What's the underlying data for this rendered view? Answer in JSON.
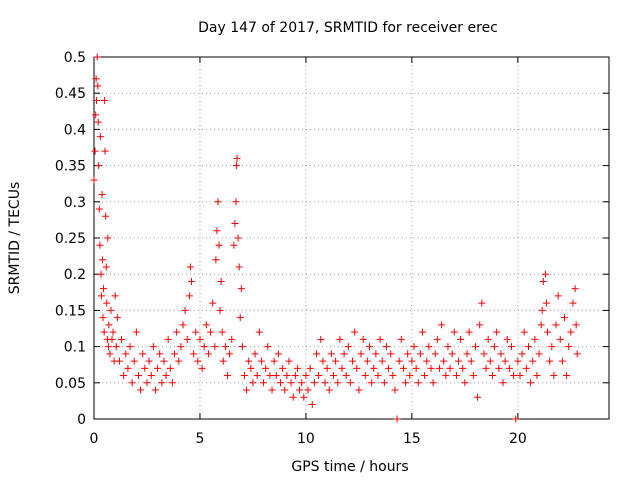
{
  "chart_data": {
    "type": "scatter",
    "title": "Day 147 of 2017, SRMTID for receiver erec",
    "xlabel": "GPS time / hours",
    "ylabel": "SRMTID / TECUs",
    "xlim": [
      0,
      24.3
    ],
    "ylim": [
      0,
      0.5
    ],
    "x_ticks": [
      0,
      5,
      10,
      15,
      20
    ],
    "y_ticks": [
      0,
      0.05,
      0.1,
      0.15,
      0.2,
      0.25,
      0.3,
      0.35,
      0.4,
      0.45,
      0.5
    ],
    "grid": true,
    "marker": "plus",
    "marker_color": "#ff0000",
    "series": [
      {
        "name": "SRMTID",
        "points": [
          [
            0.0,
            0.33
          ],
          [
            0.05,
            0.37
          ],
          [
            0.08,
            0.42
          ],
          [
            0.1,
            0.47
          ],
          [
            0.12,
            0.44
          ],
          [
            0.15,
            0.5
          ],
          [
            0.18,
            0.46
          ],
          [
            0.2,
            0.41
          ],
          [
            0.22,
            0.35
          ],
          [
            0.25,
            0.29
          ],
          [
            0.28,
            0.24
          ],
          [
            0.3,
            0.39
          ],
          [
            0.33,
            0.2
          ],
          [
            0.35,
            0.17
          ],
          [
            0.38,
            0.31
          ],
          [
            0.4,
            0.22
          ],
          [
            0.42,
            0.14
          ],
          [
            0.45,
            0.18
          ],
          [
            0.48,
            0.12
          ],
          [
            0.5,
            0.44
          ],
          [
            0.52,
            0.37
          ],
          [
            0.55,
            0.28
          ],
          [
            0.58,
            0.21
          ],
          [
            0.6,
            0.16
          ],
          [
            0.63,
            0.11
          ],
          [
            0.65,
            0.25
          ],
          [
            0.68,
            0.1
          ],
          [
            0.7,
            0.13
          ],
          [
            0.75,
            0.09
          ],
          [
            0.8,
            0.15
          ],
          [
            0.85,
            0.11
          ],
          [
            0.9,
            0.12
          ],
          [
            0.95,
            0.08
          ],
          [
            1.0,
            0.17
          ],
          [
            1.05,
            0.1
          ],
          [
            1.1,
            0.14
          ],
          [
            1.2,
            0.08
          ],
          [
            1.3,
            0.11
          ],
          [
            1.4,
            0.06
          ],
          [
            1.5,
            0.09
          ],
          [
            1.6,
            0.07
          ],
          [
            1.7,
            0.1
          ],
          [
            1.8,
            0.05
          ],
          [
            1.9,
            0.08
          ],
          [
            2.0,
            0.12
          ],
          [
            2.1,
            0.06
          ],
          [
            2.2,
            0.04
          ],
          [
            2.3,
            0.09
          ],
          [
            2.4,
            0.07
          ],
          [
            2.5,
            0.05
          ],
          [
            2.6,
            0.08
          ],
          [
            2.7,
            0.06
          ],
          [
            2.8,
            0.1
          ],
          [
            2.9,
            0.04
          ],
          [
            3.0,
            0.07
          ],
          [
            3.1,
            0.09
          ],
          [
            3.2,
            0.05
          ],
          [
            3.3,
            0.08
          ],
          [
            3.4,
            0.06
          ],
          [
            3.5,
            0.11
          ],
          [
            3.6,
            0.07
          ],
          [
            3.7,
            0.05
          ],
          [
            3.8,
            0.09
          ],
          [
            3.9,
            0.12
          ],
          [
            4.0,
            0.08
          ],
          [
            4.1,
            0.1
          ],
          [
            4.2,
            0.13
          ],
          [
            4.3,
            0.15
          ],
          [
            4.4,
            0.11
          ],
          [
            4.5,
            0.17
          ],
          [
            4.55,
            0.21
          ],
          [
            4.6,
            0.19
          ],
          [
            4.7,
            0.09
          ],
          [
            4.8,
            0.12
          ],
          [
            4.9,
            0.08
          ],
          [
            5.0,
            0.11
          ],
          [
            5.1,
            0.07
          ],
          [
            5.2,
            0.1
          ],
          [
            5.3,
            0.13
          ],
          [
            5.4,
            0.09
          ],
          [
            5.5,
            0.12
          ],
          [
            5.6,
            0.16
          ],
          [
            5.7,
            0.1
          ],
          [
            5.75,
            0.22
          ],
          [
            5.8,
            0.26
          ],
          [
            5.85,
            0.3
          ],
          [
            5.9,
            0.24
          ],
          [
            5.95,
            0.15
          ],
          [
            6.0,
            0.19
          ],
          [
            6.05,
            0.12
          ],
          [
            6.1,
            0.08
          ],
          [
            6.2,
            0.1
          ],
          [
            6.3,
            0.06
          ],
          [
            6.4,
            0.09
          ],
          [
            6.5,
            0.11
          ],
          [
            6.6,
            0.24
          ],
          [
            6.65,
            0.27
          ],
          [
            6.7,
            0.3
          ],
          [
            6.72,
            0.35
          ],
          [
            6.75,
            0.36
          ],
          [
            6.8,
            0.25
          ],
          [
            6.85,
            0.21
          ],
          [
            6.9,
            0.14
          ],
          [
            6.95,
            0.18
          ],
          [
            7.0,
            0.1
          ],
          [
            7.1,
            0.06
          ],
          [
            7.2,
            0.04
          ],
          [
            7.3,
            0.08
          ],
          [
            7.4,
            0.07
          ],
          [
            7.5,
            0.05
          ],
          [
            7.6,
            0.09
          ],
          [
            7.7,
            0.06
          ],
          [
            7.8,
            0.12
          ],
          [
            7.9,
            0.08
          ],
          [
            8.0,
            0.05
          ],
          [
            8.1,
            0.07
          ],
          [
            8.2,
            0.1
          ],
          [
            8.3,
            0.06
          ],
          [
            8.4,
            0.04
          ],
          [
            8.5,
            0.08
          ],
          [
            8.6,
            0.06
          ],
          [
            8.7,
            0.09
          ],
          [
            8.8,
            0.05
          ],
          [
            8.9,
            0.07
          ],
          [
            9.0,
            0.04
          ],
          [
            9.1,
            0.06
          ],
          [
            9.2,
            0.08
          ],
          [
            9.3,
            0.05
          ],
          [
            9.4,
            0.03
          ],
          [
            9.5,
            0.06
          ],
          [
            9.6,
            0.07
          ],
          [
            9.7,
            0.04
          ],
          [
            9.8,
            0.05
          ],
          [
            9.9,
            0.03
          ],
          [
            10.0,
            0.06
          ],
          [
            10.1,
            0.04
          ],
          [
            10.2,
            0.07
          ],
          [
            10.3,
            0.02
          ],
          [
            10.4,
            0.05
          ],
          [
            10.5,
            0.09
          ],
          [
            10.6,
            0.06
          ],
          [
            10.7,
            0.11
          ],
          [
            10.8,
            0.08
          ],
          [
            10.9,
            0.05
          ],
          [
            11.0,
            0.07
          ],
          [
            11.1,
            0.04
          ],
          [
            11.2,
            0.09
          ],
          [
            11.3,
            0.06
          ],
          [
            11.4,
            0.08
          ],
          [
            11.5,
            0.05
          ],
          [
            11.6,
            0.11
          ],
          [
            11.7,
            0.07
          ],
          [
            11.8,
            0.09
          ],
          [
            11.9,
            0.06
          ],
          [
            12.0,
            0.1
          ],
          [
            12.1,
            0.05
          ],
          [
            12.2,
            0.08
          ],
          [
            12.3,
            0.12
          ],
          [
            12.4,
            0.07
          ],
          [
            12.5,
            0.04
          ],
          [
            12.6,
            0.09
          ],
          [
            12.7,
            0.11
          ],
          [
            12.8,
            0.06
          ],
          [
            12.9,
            0.08
          ],
          [
            13.0,
            0.1
          ],
          [
            13.1,
            0.05
          ],
          [
            13.2,
            0.07
          ],
          [
            13.3,
            0.09
          ],
          [
            13.4,
            0.06
          ],
          [
            13.5,
            0.11
          ],
          [
            13.6,
            0.08
          ],
          [
            13.7,
            0.05
          ],
          [
            13.8,
            0.1
          ],
          [
            13.9,
            0.07
          ],
          [
            14.0,
            0.09
          ],
          [
            14.1,
            0.06
          ],
          [
            14.2,
            0.04
          ],
          [
            14.3,
            0.0
          ],
          [
            14.4,
            0.08
          ],
          [
            14.5,
            0.11
          ],
          [
            14.6,
            0.07
          ],
          [
            14.7,
            0.05
          ],
          [
            14.8,
            0.09
          ],
          [
            14.9,
            0.06
          ],
          [
            15.0,
            0.08
          ],
          [
            15.1,
            0.1
          ],
          [
            15.2,
            0.07
          ],
          [
            15.3,
            0.05
          ],
          [
            15.4,
            0.09
          ],
          [
            15.5,
            0.12
          ],
          [
            15.6,
            0.06
          ],
          [
            15.7,
            0.08
          ],
          [
            15.8,
            0.1
          ],
          [
            15.9,
            0.07
          ],
          [
            16.0,
            0.05
          ],
          [
            16.1,
            0.09
          ],
          [
            16.2,
            0.11
          ],
          [
            16.3,
            0.07
          ],
          [
            16.4,
            0.13
          ],
          [
            16.5,
            0.08
          ],
          [
            16.6,
            0.06
          ],
          [
            16.7,
            0.1
          ],
          [
            16.8,
            0.07
          ],
          [
            16.9,
            0.09
          ],
          [
            17.0,
            0.12
          ],
          [
            17.1,
            0.06
          ],
          [
            17.2,
            0.08
          ],
          [
            17.3,
            0.11
          ],
          [
            17.4,
            0.07
          ],
          [
            17.5,
            0.05
          ],
          [
            17.6,
            0.09
          ],
          [
            17.7,
            0.12
          ],
          [
            17.8,
            0.08
          ],
          [
            17.9,
            0.06
          ],
          [
            18.0,
            0.1
          ],
          [
            18.1,
            0.03
          ],
          [
            18.2,
            0.13
          ],
          [
            18.3,
            0.16
          ],
          [
            18.4,
            0.09
          ],
          [
            18.5,
            0.07
          ],
          [
            18.6,
            0.11
          ],
          [
            18.7,
            0.08
          ],
          [
            18.8,
            0.06
          ],
          [
            18.9,
            0.1
          ],
          [
            19.0,
            0.12
          ],
          [
            19.1,
            0.07
          ],
          [
            19.2,
            0.09
          ],
          [
            19.3,
            0.05
          ],
          [
            19.4,
            0.08
          ],
          [
            19.5,
            0.11
          ],
          [
            19.6,
            0.07
          ],
          [
            19.7,
            0.1
          ],
          [
            19.8,
            0.06
          ],
          [
            19.9,
            0.0
          ],
          [
            20.0,
            0.08
          ],
          [
            20.1,
            0.06
          ],
          [
            20.2,
            0.09
          ],
          [
            20.3,
            0.12
          ],
          [
            20.4,
            0.07
          ],
          [
            20.5,
            0.1
          ],
          [
            20.6,
            0.05
          ],
          [
            20.7,
            0.08
          ],
          [
            20.8,
            0.11
          ],
          [
            20.9,
            0.06
          ],
          [
            21.0,
            0.09
          ],
          [
            21.1,
            0.13
          ],
          [
            21.15,
            0.15
          ],
          [
            21.2,
            0.19
          ],
          [
            21.3,
            0.2
          ],
          [
            21.35,
            0.16
          ],
          [
            21.4,
            0.12
          ],
          [
            21.5,
            0.08
          ],
          [
            21.6,
            0.1
          ],
          [
            21.7,
            0.06
          ],
          [
            21.8,
            0.13
          ],
          [
            21.9,
            0.17
          ],
          [
            22.0,
            0.11
          ],
          [
            22.1,
            0.08
          ],
          [
            22.2,
            0.14
          ],
          [
            22.3,
            0.06
          ],
          [
            22.4,
            0.1
          ],
          [
            22.5,
            0.12
          ],
          [
            22.6,
            0.16
          ],
          [
            22.7,
            0.18
          ],
          [
            22.75,
            0.13
          ],
          [
            22.8,
            0.09
          ]
        ]
      }
    ]
  }
}
